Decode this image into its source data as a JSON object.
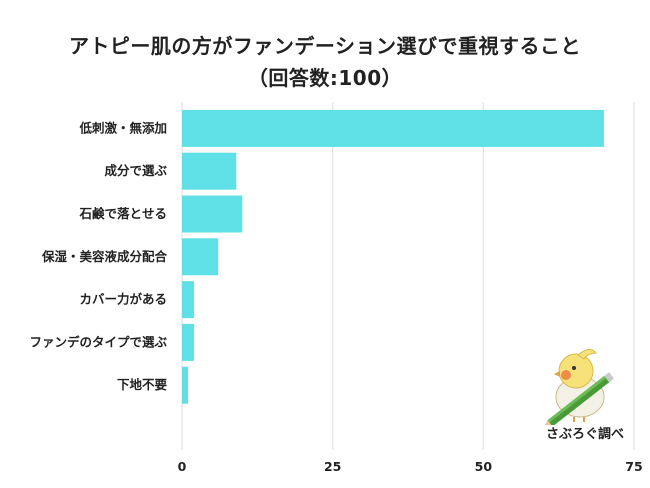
{
  "chart_data": {
    "type": "bar",
    "orientation": "horizontal",
    "title_line1": "アトピー肌の方がファンデーション選びで重視すること",
    "title_line2": "（回答数:100）",
    "categories": [
      "低刺激・無添加",
      "成分で選ぶ",
      "石鹸で落とせる",
      "保湿・美容液成分配合",
      "カバー力がある",
      "ファンデのタイプで選ぶ",
      "下地不要"
    ],
    "values": [
      70,
      9,
      10,
      6,
      2,
      2,
      1
    ],
    "xlim": [
      0,
      75
    ],
    "xticks": [
      "0",
      "25",
      "50",
      "75"
    ],
    "grid": "vertical",
    "bar_color": "#5ee0e6"
  },
  "logo": {
    "text": "さぶろぐ調べ"
  }
}
